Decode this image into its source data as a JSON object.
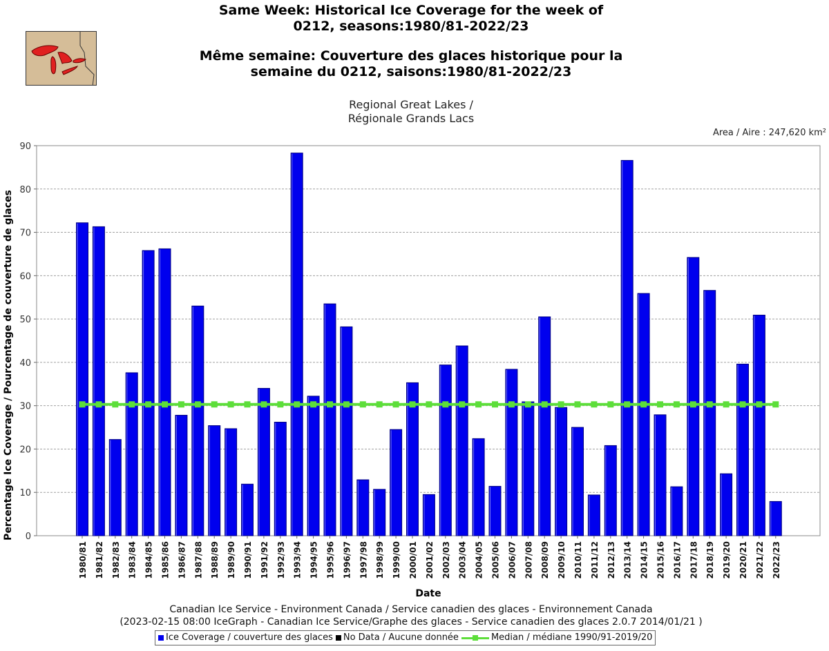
{
  "title_en": [
    "Same Week: Historical Ice Coverage for the week of",
    "0212, seasons:1980/81-2022/23"
  ],
  "title_fr": [
    "Même semaine: Couverture des glaces historique pour la",
    "semaine du 0212, saisons:1980/81-2022/23"
  ],
  "subtitle": [
    "Regional Great Lakes /",
    "Régionale Grands Lacs"
  ],
  "area": "Area / Aire : 247,620 km²",
  "footer": [
    "Canadian Ice Service - Environment Canada / Service canadien des glaces - Environnement Canada",
    "(2023-02-15 08:00 IceGraph - Canadian Ice Service/Graphe des glaces - Service canadien des glaces 2.0.7 2014/01/21 )"
  ],
  "legend": {
    "ice": "Ice Coverage / couverture des glaces",
    "nodata": "No Data / Aucune donnée",
    "median": "Median / médiane 1990/91-2019/20"
  },
  "colors": {
    "bar": "#0000ee",
    "bar_edge": "#000080",
    "median": "#5dde3a",
    "grid": "#a0a0a0",
    "logo_bg": "#d5bd98",
    "logo_lakes": "#e02020"
  },
  "logo_icon": "great-lakes-map-icon",
  "chart_data": {
    "type": "bar",
    "xlabel": "Date",
    "ylabel": "Percentage Ice Coverage / Pourcentage de couverture de glaces",
    "ylim": [
      0,
      90
    ],
    "yticks": [
      0,
      10,
      20,
      30,
      40,
      50,
      60,
      70,
      80,
      90
    ],
    "grid": true,
    "median": 30.3,
    "categories": [
      "1980/81",
      "1981/82",
      "1982/83",
      "1983/84",
      "1984/85",
      "1985/86",
      "1986/87",
      "1987/88",
      "1988/89",
      "1989/90",
      "1990/91",
      "1991/92",
      "1992/93",
      "1993/94",
      "1994/95",
      "1995/96",
      "1996/97",
      "1997/98",
      "1998/99",
      "1999/00",
      "2000/01",
      "2001/02",
      "2002/03",
      "2003/04",
      "2004/05",
      "2005/06",
      "2006/07",
      "2007/08",
      "2008/09",
      "2009/10",
      "2010/11",
      "2011/12",
      "2012/13",
      "2013/14",
      "2014/15",
      "2015/16",
      "2016/17",
      "2017/18",
      "2018/19",
      "2019/20",
      "2020/21",
      "2021/22",
      "2022/23"
    ],
    "values": [
      72.2,
      71.3,
      22.2,
      37.6,
      65.8,
      66.2,
      27.8,
      53.0,
      25.4,
      24.7,
      11.9,
      34.0,
      26.2,
      88.3,
      32.2,
      53.5,
      48.2,
      12.9,
      10.7,
      24.5,
      35.3,
      9.5,
      39.4,
      43.8,
      22.4,
      11.4,
      38.4,
      30.9,
      50.5,
      29.6,
      25.0,
      9.4,
      20.8,
      86.6,
      55.9,
      27.9,
      11.3,
      64.2,
      56.6,
      14.3,
      39.6,
      50.9,
      7.9
    ]
  }
}
